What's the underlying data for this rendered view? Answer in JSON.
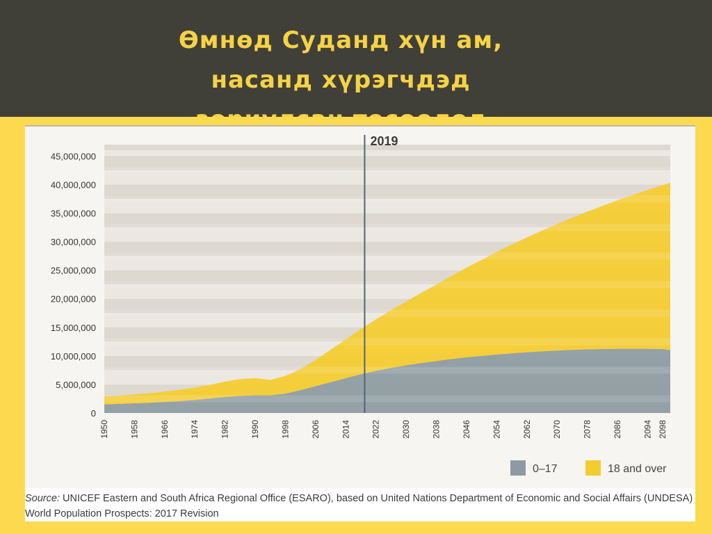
{
  "slide": {
    "title": "Өмнөд Суданд хүн ам,\nнасанд хүрэгчдэд\nзориулсан төсөөлөл"
  },
  "chart_data": {
    "type": "area",
    "stacked": true,
    "x": [
      1950,
      1954,
      1958,
      1962,
      1966,
      1970,
      1974,
      1978,
      1982,
      1986,
      1990,
      1994,
      1998,
      2002,
      2006,
      2010,
      2014,
      2018,
      2022,
      2026,
      2030,
      2034,
      2038,
      2042,
      2046,
      2050,
      2054,
      2058,
      2062,
      2066,
      2070,
      2074,
      2078,
      2082,
      2086,
      2090,
      2094,
      2098,
      2100
    ],
    "x_tick_labels": [
      "1950",
      "1958",
      "1966",
      "1974",
      "1982",
      "1990",
      "1998",
      "2006",
      "2014",
      "2022",
      "2030",
      "2038",
      "2046",
      "2054",
      "2062",
      "2070",
      "2078",
      "2086",
      "2094",
      "2098"
    ],
    "x_tick_values": [
      1950,
      1958,
      1966,
      1974,
      1982,
      1990,
      1998,
      2006,
      2014,
      2022,
      2030,
      2038,
      2046,
      2054,
      2062,
      2070,
      2078,
      2086,
      2094,
      2098
    ],
    "y_tick_labels": [
      "0",
      "5,000,000",
      "10,000,000",
      "15,000,000",
      "20,000,000",
      "25,000,000",
      "30,000,000",
      "35,000,000",
      "40,000,000",
      "45,000,000"
    ],
    "ylim": [
      0,
      47000000
    ],
    "xlim": [
      1950,
      2100
    ],
    "series": [
      {
        "name": "0–17",
        "color": "#8d9ba1",
        "values": [
          1500000,
          1600000,
          1700000,
          1800000,
          1950000,
          2100000,
          2300000,
          2550000,
          2800000,
          3000000,
          3100000,
          3100000,
          3400000,
          4000000,
          4700000,
          5400000,
          6100000,
          6800000,
          7400000,
          7900000,
          8350000,
          8750000,
          9100000,
          9450000,
          9750000,
          10000000,
          10250000,
          10450000,
          10650000,
          10800000,
          10950000,
          11050000,
          11150000,
          11200000,
          11250000,
          11250000,
          11250000,
          11200000,
          11000000
        ]
      },
      {
        "name": "18 and over",
        "color": "#f5cc2e",
        "values": [
          1400000,
          1450000,
          1550000,
          1650000,
          1800000,
          1950000,
          2150000,
          2400000,
          2700000,
          2950000,
          3000000,
          2700000,
          3100000,
          3700000,
          4600000,
          5700000,
          6800000,
          7900000,
          9000000,
          10100000,
          11150000,
          12300000,
          13400000,
          14550000,
          15700000,
          16800000,
          17950000,
          19050000,
          20100000,
          21150000,
          22150000,
          23150000,
          24100000,
          25050000,
          26000000,
          26900000,
          27800000,
          28700000,
          29300000
        ]
      }
    ],
    "marker": {
      "label": "2019",
      "x": 2019
    },
    "legend_position": "bottom-right",
    "grid": "horizontal bands"
  },
  "source": {
    "label": "Source:",
    "text": " UNICEF Eastern and South Africa Regional Office (ESARO), based on United Nations Department of Economic and Social Affairs (UNDESA) World Population Prospects: 2017 Revision"
  }
}
